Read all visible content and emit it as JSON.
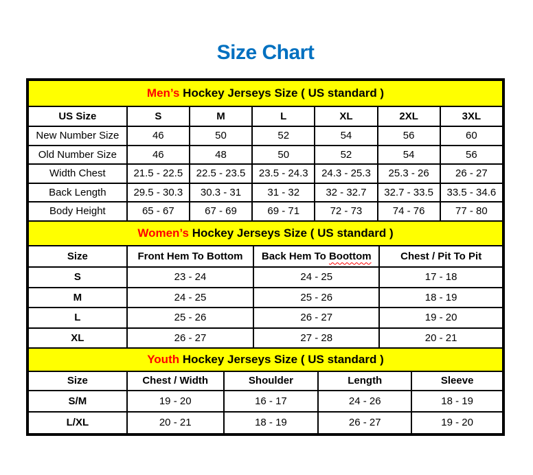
{
  "page": {
    "title": "Size Chart"
  },
  "colors": {
    "title_blue": "#0070C0",
    "accent_red": "#FF0000",
    "section_yellow": "#FFFF00",
    "border_black": "#000000"
  },
  "sections": [
    {
      "id": "mens",
      "group_label": "Men’s",
      "title_rest": " Hockey Jerseys Size ( US standard )",
      "col_widths": [
        "20.8%",
        "13.2%",
        "13.2%",
        "13.2%",
        "13.2%",
        "13.2%",
        "13.2%"
      ],
      "columns": [
        "US Size",
        "S",
        "M",
        "L",
        "XL",
        "2XL",
        "3XL"
      ],
      "bold_row_labels": false,
      "rows": [
        [
          "New Number Size",
          "46",
          "50",
          "52",
          "54",
          "56",
          "60"
        ],
        [
          "Old Number Size",
          "46",
          "48",
          "50",
          "52",
          "54",
          "56"
        ],
        [
          "Width Chest",
          "21.5 - 22.5",
          "22.5 - 23.5",
          "23.5 - 24.3",
          "24.3 - 25.3",
          "25.3 - 26",
          "26 - 27"
        ],
        [
          "Back Length",
          "29.5 - 30.3",
          "30.3 - 31",
          "31 - 32",
          "32 - 32.7",
          "32.7 - 33.5",
          "33.5 - 34.6"
        ],
        [
          "Body Height",
          "65 - 67",
          "67 - 69",
          "69 - 71",
          "72 - 73",
          "74 - 76",
          "77 - 80"
        ]
      ]
    },
    {
      "id": "womens",
      "group_label": "Women’s",
      "title_rest": " Hockey Jerseys Size ( US standard )",
      "col_widths": [
        "20.8%",
        "26.7%",
        "26.5%",
        "26.0%"
      ],
      "columns": [
        "Size",
        "Front Hem To Bottom",
        {
          "prefix": "Back Hem To ",
          "misspelled": "Boottom"
        },
        "Chest / Pit To Pit"
      ],
      "bold_row_labels": true,
      "rows": [
        [
          "S",
          "23 - 24",
          "24 - 25",
          "17 - 18"
        ],
        [
          "M",
          "24 - 25",
          "25 - 26",
          "18 - 19"
        ],
        [
          "L",
          "25 - 26",
          "26 - 27",
          "19 - 20"
        ],
        [
          "XL",
          "26 - 27",
          "27 - 28",
          "20 - 21"
        ]
      ]
    },
    {
      "id": "youth",
      "group_label": "Youth",
      "title_rest": " Hockey Jerseys Size ( US standard )",
      "col_widths": [
        "20.8%",
        "20.4%",
        "19.9%",
        "19.7%",
        "19.2%"
      ],
      "columns": [
        "Size",
        "Chest / Width",
        "Shoulder",
        "Length",
        "Sleeve"
      ],
      "bold_row_labels": true,
      "rows": [
        [
          "S/M",
          "19 - 20",
          "16 - 17",
          "24 - 26",
          "18 - 19"
        ],
        [
          "L/XL",
          "20 - 21",
          "18 - 19",
          "26 - 27",
          "19 - 20"
        ]
      ]
    }
  ]
}
